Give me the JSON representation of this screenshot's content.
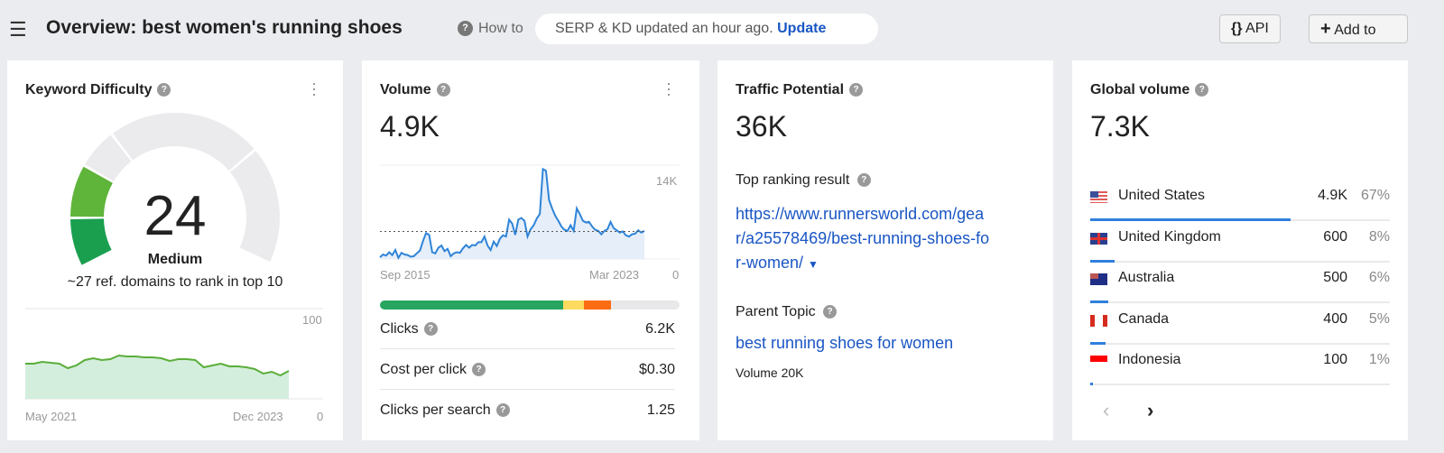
{
  "header": {
    "title": "Overview: best women's running shoes",
    "howto": "How to",
    "status_text": "SERP & KD updated an hour ago.",
    "update_link": "Update",
    "api_button": "API",
    "api_icon": "{}",
    "add_button": "Add to",
    "add_icon": "+"
  },
  "kd": {
    "title": "Keyword Difficulty",
    "score": "24",
    "score_value": 24,
    "level": "Medium",
    "subtitle": "~27 ref. domains to rank in top 10",
    "chart_max": "100",
    "chart_min": "0",
    "start": "May 2021",
    "end": "Dec 2023",
    "colors": {
      "line": "#5aae3a",
      "fill": "#d4eedd",
      "gauge_green": "#1a9f4f"
    },
    "history": [
      39,
      39,
      41,
      40,
      39,
      34,
      37,
      43,
      45,
      43,
      44,
      48,
      47,
      47,
      46,
      46,
      45,
      42,
      44,
      44,
      43,
      35,
      37,
      39,
      36,
      36,
      35,
      33,
      28,
      30,
      26,
      31
    ]
  },
  "volume": {
    "title": "Volume",
    "value": "4.9K",
    "axis_max": "14K",
    "axis_min": "0",
    "start": "Sep 2015",
    "end": "Mar 2023",
    "average_k": 4.9,
    "history_k": [
      0.3,
      0.8,
      0.6,
      1.2,
      0.7,
      1.6,
      0.2,
      1.1,
      0.8,
      0.7,
      0.4,
      0.5,
      1.0,
      1.5,
      3.2,
      4.6,
      4.3,
      1.2,
      1.0,
      2.0,
      2.4,
      1.4,
      1.8,
      0.5,
      1.0,
      1.2,
      1.1,
      1.9,
      2.5,
      2.0,
      2.5,
      2.4,
      3.0,
      3.0,
      4.0,
      2.4,
      1.6,
      3.1,
      2.3,
      3.6,
      4.2,
      4.0,
      7.0,
      6.3,
      4.3,
      7.0,
      7.3,
      6.8,
      4.0,
      5.3,
      6.0,
      7.2,
      8.0,
      16.0,
      15.7,
      10.5,
      9.0,
      7.7,
      6.8,
      5.8,
      5.2,
      5.0,
      6.0,
      5.0,
      9.0,
      8.0,
      6.8,
      6.5,
      6.6,
      5.8,
      5.2,
      5.0,
      4.4,
      5.0,
      5.3,
      6.6,
      5.5,
      5.1,
      4.7,
      4.9,
      4.2,
      4.0,
      4.4,
      4.5,
      5.1,
      4.7,
      5.0
    ],
    "bar": [
      {
        "share": 0.61,
        "color": "#27a560"
      },
      {
        "share": 0.07,
        "color": "#fcdb5e"
      },
      {
        "share": 0.09,
        "color": "#fb6d13"
      },
      {
        "share": 0.23,
        "color": "#e8e8ea"
      }
    ],
    "rows": [
      {
        "label": "Clicks",
        "value": "6.2K"
      },
      {
        "label": "Cost per click",
        "value": "$0.30"
      },
      {
        "label": "Clicks per search",
        "value": "1.25"
      }
    ],
    "colors": {
      "line": "#2f84d8",
      "fill": "#e5eef9"
    }
  },
  "traffic": {
    "title": "Traffic Potential",
    "value": "36K",
    "top_label": "Top ranking result",
    "url_lines": [
      "https://www.runnersworld.com/gea",
      "r/a25578469/best-running-shoes-fo",
      "r-women/"
    ],
    "parent_label": "Parent Topic",
    "parent_link": "best running shoes for women",
    "parent_volume": "Volume 20K"
  },
  "global": {
    "title": "Global volume",
    "value": "7.3K",
    "countries": [
      {
        "name": "United States",
        "volume": "4.9K",
        "pct": "67%",
        "share": 0.67,
        "flag": "us-flag"
      },
      {
        "name": "United Kingdom",
        "volume": "600",
        "pct": "8%",
        "share": 0.08,
        "flag": "uk-flag"
      },
      {
        "name": "Australia",
        "volume": "500",
        "pct": "6%",
        "share": 0.06,
        "flag": "au-flag"
      },
      {
        "name": "Canada",
        "volume": "400",
        "pct": "5%",
        "share": 0.05,
        "flag": "ca-flag"
      },
      {
        "name": "Indonesia",
        "volume": "100",
        "pct": "1%",
        "share": 0.01,
        "flag": "id-flag"
      }
    ]
  }
}
